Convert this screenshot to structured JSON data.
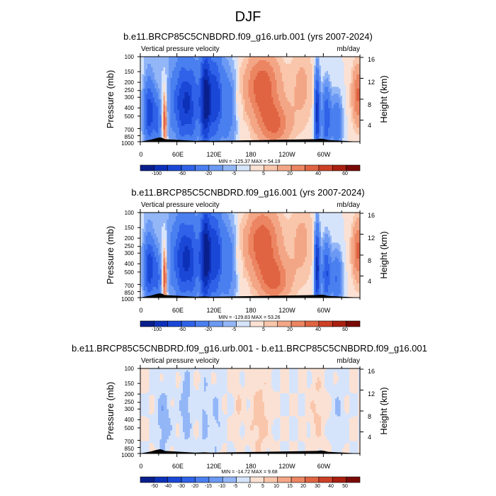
{
  "main_title": "DJF",
  "colors": {
    "palette": [
      "#0a1f8c",
      "#0d30b8",
      "#1a47d6",
      "#2f62e8",
      "#4a7fef",
      "#6b99f3",
      "#93b6f7",
      "#b8cffa",
      "#d6e4fb",
      "#fbe1d3",
      "#f9c6ab",
      "#f3a686",
      "#ec8562",
      "#e06442",
      "#cc4026",
      "#a91f10",
      "#7a0a06"
    ],
    "border": "#000000"
  },
  "chart_data": [
    {
      "type": "heatmap",
      "title": "b.e11.BRCP85C5CNBDRD.f09_g16.urb.001 (yrs 2007-2024)",
      "left_label": "Vertical pressure velocity",
      "right_label": "mb/day",
      "ylabel": "Pressure (mb)",
      "ylabel_right": "Height (km)",
      "pressure_ticks": [
        "100",
        "150",
        "200",
        "250",
        "300",
        "400",
        "500",
        "700",
        "850",
        "1000"
      ],
      "height_ticks": [
        "4",
        "8",
        "12",
        "16"
      ],
      "x_ticks": [
        "0",
        "60E",
        "120E",
        "180",
        "120W",
        "60W"
      ],
      "stats": "MIN = -125.37  MAX =  54.19",
      "colorbar_labels": [
        "-100",
        "-60",
        "-20",
        "-5",
        "5",
        "20",
        "40",
        "60"
      ],
      "variant": "mean"
    },
    {
      "type": "heatmap",
      "title": "b.e11.BRCP85C5CNBDRD.f09_g16.001 (yrs 2007-2024)",
      "left_label": "Vertical pressure velocity",
      "right_label": "mb/day",
      "ylabel": "Pressure (mb)",
      "ylabel_right": "Height (km)",
      "pressure_ticks": [
        "100",
        "150",
        "200",
        "250",
        "300",
        "400",
        "500",
        "700",
        "850",
        "1000"
      ],
      "height_ticks": [
        "4",
        "8",
        "12",
        "16"
      ],
      "x_ticks": [
        "0",
        "60E",
        "120E",
        "180",
        "120W",
        "60W"
      ],
      "stats": "MIN = -129.83  MAX =  53.26",
      "colorbar_labels": [
        "-100",
        "-60",
        "-20",
        "-5",
        "5",
        "20",
        "40",
        "60"
      ],
      "variant": "mean"
    },
    {
      "type": "heatmap",
      "title": "b.e11.BRCP85C5CNBDRD.f09_g16.urb.001 - b.e11.BRCP85C5CNBDRD.f09_g16.001",
      "left_label": "Vertical pressure velocity",
      "right_label": "mb/day",
      "ylabel": "Pressure (mb)",
      "ylabel_right": "Height (km)",
      "pressure_ticks": [
        "100",
        "150",
        "200",
        "250",
        "300",
        "400",
        "500",
        "700",
        "850",
        "1000"
      ],
      "height_ticks": [
        "4",
        "8",
        "12",
        "16"
      ],
      "x_ticks": [
        "0",
        "60E",
        "120E",
        "180",
        "120W",
        "60W"
      ],
      "stats": "MIN = -14.72  MAX =  9.68",
      "colorbar_labels": [
        "-50",
        "-40",
        "-30",
        "-20",
        "-15",
        "-10",
        "-5",
        "0",
        "5",
        "10",
        "15",
        "20",
        "30",
        "40",
        "50"
      ],
      "variant": "diff"
    }
  ]
}
